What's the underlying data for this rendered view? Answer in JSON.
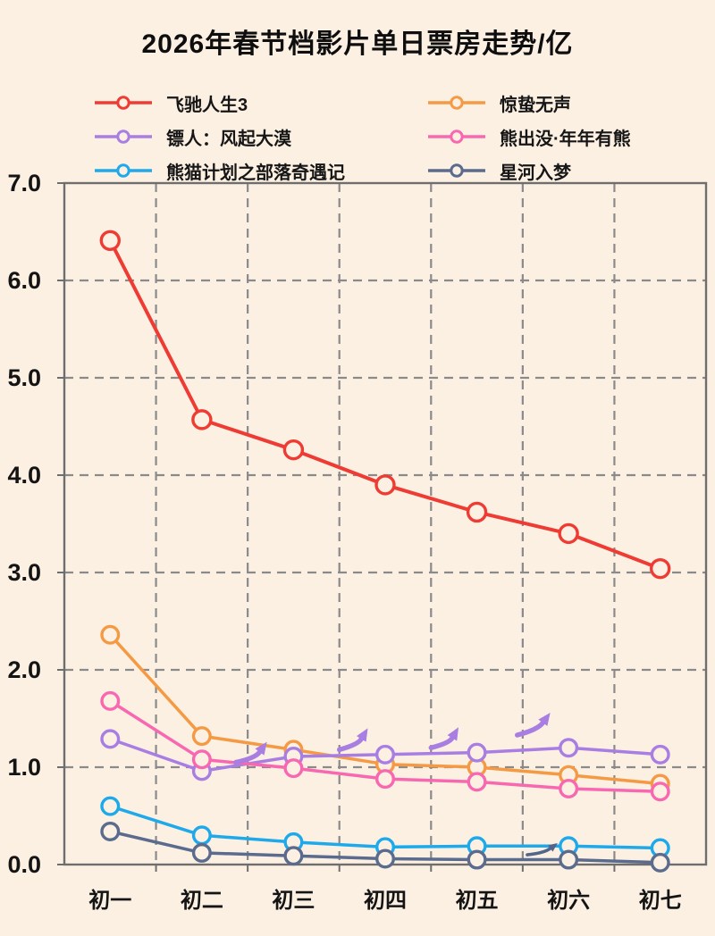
{
  "title": "2026年春节档影片单日票房走势/亿",
  "legend": [
    {
      "label": "飞驰人生3",
      "color": "#ee3b33"
    },
    {
      "label": "惊蛰无声",
      "color": "#f59a44"
    },
    {
      "label": "镖人：风起大漠",
      "color": "#a87ee2"
    },
    {
      "label": "熊出没·年年有熊",
      "color": "#f768b1"
    },
    {
      "label": "熊猫计划之部落奇遇记",
      "color": "#1ea9ea"
    },
    {
      "label": "星河入梦",
      "color": "#5a6b8d"
    }
  ],
  "chart_data": {
    "type": "line",
    "title": "2026年春节档影片单日票房走势/亿",
    "categories": [
      "初一",
      "初二",
      "初三",
      "初四",
      "初五",
      "初六",
      "初七"
    ],
    "series": [
      {
        "name": "飞驰人生3",
        "color": "#ee3b33",
        "values": [
          6.41,
          4.57,
          4.26,
          3.9,
          3.62,
          3.4,
          3.04
        ]
      },
      {
        "name": "惊蛰无声",
        "color": "#f59a44",
        "values": [
          2.36,
          1.32,
          1.18,
          1.03,
          1.0,
          0.92,
          0.83
        ]
      },
      {
        "name": "镖人：风起大漠",
        "color": "#a87ee2",
        "values": [
          1.29,
          0.96,
          1.11,
          1.13,
          1.15,
          1.2,
          1.13
        ]
      },
      {
        "name": "熊出没·年年有熊",
        "color": "#f768b1",
        "values": [
          1.68,
          1.08,
          0.99,
          0.88,
          0.85,
          0.78,
          0.75
        ]
      },
      {
        "name": "熊猫计划之部落奇遇记",
        "color": "#1ea9ea",
        "values": [
          0.6,
          0.3,
          0.23,
          0.18,
          0.19,
          0.19,
          0.17
        ]
      },
      {
        "name": "星河入梦",
        "color": "#5a6b8d",
        "values": [
          0.34,
          0.12,
          0.09,
          0.06,
          0.05,
          0.05,
          0.02
        ]
      }
    ],
    "ylim": [
      0,
      7
    ],
    "ytick_labels": [
      "0.0",
      "1.0",
      "2.0",
      "3.0",
      "4.0",
      "5.0",
      "6.0",
      "7.0"
    ],
    "grid": true,
    "grid_style": "dashed",
    "legend_position": "top",
    "annotations": [
      {
        "kind": "trend-arrow",
        "from": [
          1.37,
          1.05
        ],
        "to": [
          1.71,
          1.26
        ],
        "color": "#a87ee2",
        "size": "large"
      },
      {
        "kind": "trend-arrow",
        "from": [
          2.5,
          1.18
        ],
        "to": [
          2.81,
          1.4
        ],
        "color": "#a87ee2",
        "size": "large"
      },
      {
        "kind": "trend-arrow",
        "from": [
          3.5,
          1.2
        ],
        "to": [
          3.8,
          1.41
        ],
        "color": "#a87ee2",
        "size": "large"
      },
      {
        "kind": "trend-arrow",
        "from": [
          4.44,
          1.33
        ],
        "to": [
          4.8,
          1.56
        ],
        "color": "#a87ee2",
        "size": "large"
      },
      {
        "kind": "trend-arrow",
        "from": [
          4.55,
          0.1
        ],
        "to": [
          4.88,
          0.22
        ],
        "color": "#52658a",
        "size": "small"
      }
    ]
  },
  "colors": {
    "background": "#fcf0e3",
    "grid": "#8a8a8a",
    "axis": "#6e6e6e",
    "text": "#141414"
  }
}
